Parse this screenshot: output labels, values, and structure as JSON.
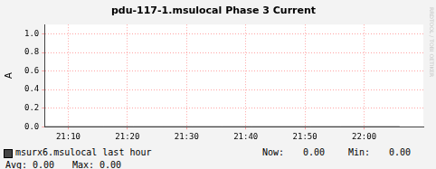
{
  "chart_data": {
    "type": "line",
    "title": "pdu-117-1.msulocal Phase 3 Current",
    "y_label": "A",
    "x": [
      1266,
      1271,
      1276,
      1281,
      1286,
      1291,
      1296,
      1301,
      1306,
      1311,
      1316,
      1321,
      1326
    ],
    "series": [
      {
        "name": "msurx6.msulocal last hour",
        "color": "#444444",
        "values": [
          0,
          0,
          0,
          0,
          0,
          0,
          0,
          0,
          0,
          0,
          0,
          0,
          0
        ]
      }
    ],
    "xlim": [
      1266,
      1330
    ],
    "xticks": [
      {
        "value": 1270,
        "label": "21:10"
      },
      {
        "value": 1280,
        "label": "21:20"
      },
      {
        "value": 1290,
        "label": "21:30"
      },
      {
        "value": 1300,
        "label": "21:40"
      },
      {
        "value": 1310,
        "label": "21:50"
      },
      {
        "value": 1320,
        "label": "22:00"
      }
    ],
    "ylim": [
      0,
      1.1
    ],
    "yticks": [
      {
        "value": 0,
        "label": "0.0"
      },
      {
        "value": 0.2,
        "label": "0.2"
      },
      {
        "value": 0.4,
        "label": "0.4"
      },
      {
        "value": 0.6,
        "label": "0.6"
      },
      {
        "value": 0.8,
        "label": "0.8"
      },
      {
        "value": 1,
        "label": "1.0"
      }
    ],
    "grid": true,
    "stats": [
      {
        "name": "Now:",
        "value": 0,
        "label": "0.00"
      },
      {
        "name": "Min:",
        "value": 0,
        "label": "0.00"
      },
      {
        "name": "Avg:",
        "value": 0,
        "label": "0.00"
      },
      {
        "name": "Max:",
        "value": 0,
        "label": "0.00"
      }
    ],
    "watermark": "RRDTOOL / TOBI OETIKER"
  }
}
